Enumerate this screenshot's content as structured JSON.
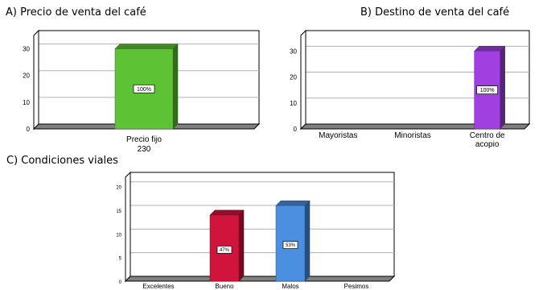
{
  "colors": {
    "green": "#5dc334",
    "purple": "#a040e0",
    "red": "#d0143c",
    "blue": "#4a8fe0",
    "frame": "#808080",
    "grid": "#b0b0b0"
  },
  "chart_data": [
    {
      "type": "bar",
      "title": "A) Precio de venta del café",
      "categories": [
        "Precio fijo 230"
      ],
      "values": [
        30
      ],
      "data_labels": [
        "100%"
      ],
      "yticks": [
        0,
        10,
        20,
        30
      ],
      "ylim": [
        0,
        35
      ],
      "grid": true,
      "style": "3d",
      "color_key": "green"
    },
    {
      "type": "bar",
      "title": "B) Destino de venta del café",
      "categories": [
        "Mayoristas",
        "Minoristas",
        "Centro de acopio"
      ],
      "values": [
        0,
        0,
        30
      ],
      "data_labels": [
        "",
        "",
        "100%"
      ],
      "yticks": [
        0,
        10,
        20,
        30
      ],
      "ylim": [
        0,
        36
      ],
      "grid": true,
      "style": "3d",
      "color_key": "purple"
    },
    {
      "type": "bar",
      "title": "C) Condiciones viales",
      "categories": [
        "Excelentes",
        "Bueno",
        "Malos",
        "Pesimos"
      ],
      "values": [
        0,
        14,
        16,
        0
      ],
      "data_labels": [
        "",
        "47%",
        "53%",
        ""
      ],
      "yticks": [
        0,
        5,
        10,
        15,
        20
      ],
      "ylim": [
        0,
        22
      ],
      "grid": true,
      "style": "3d",
      "color_keys": [
        "red",
        "red",
        "blue",
        "blue"
      ]
    }
  ]
}
